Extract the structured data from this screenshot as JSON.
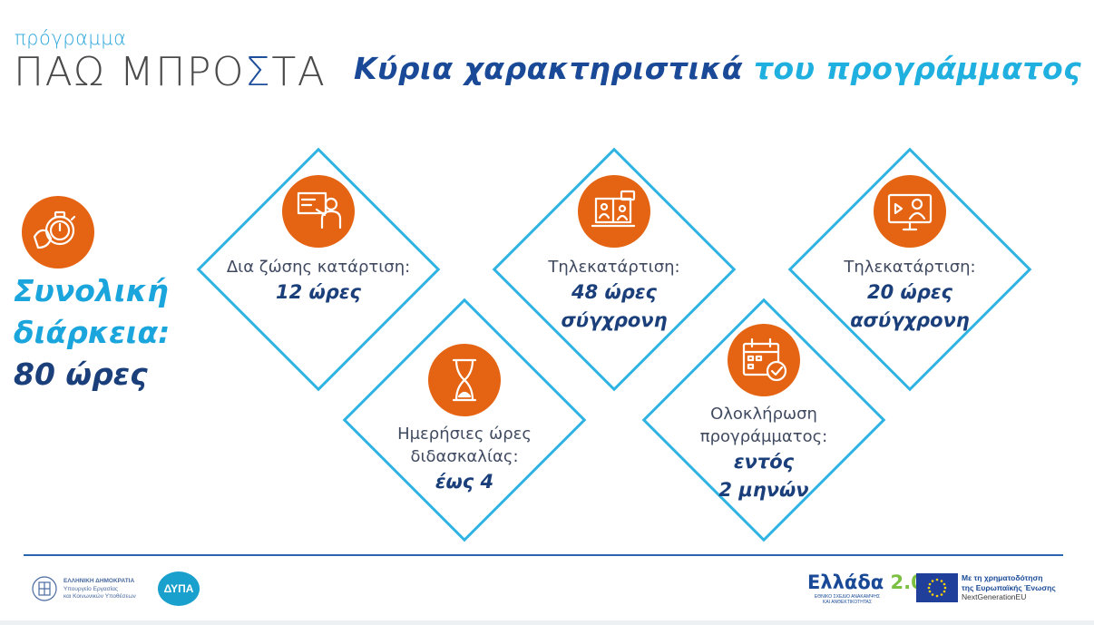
{
  "brand": {
    "small": "πρόγραμμα",
    "big_before": "ΠΑΩ ΜΠΡΟ",
    "big_sigma": "Σ",
    "big_after": "ΤΑ"
  },
  "title": {
    "main": "Κύρια χαρακτηριστικά",
    "accent": "του προγράμματος"
  },
  "total": {
    "line1": "Συνολική",
    "line2": "διάρκεια:",
    "line3": "80 ώρες",
    "icon": "stopwatch-icon"
  },
  "cards": [
    {
      "icon": "teacher-board-icon",
      "label1": "Δια ζώσης κατάρτιση:",
      "value1": "12 ώρες"
    },
    {
      "icon": "video-conference-icon",
      "label1": "Τηλεκατάρτιση:",
      "value1": "48 ώρες",
      "value2": "σύγχρονη"
    },
    {
      "icon": "monitor-video-icon",
      "label1": "Τηλεκατάρτιση:",
      "value1": "20 ώρες",
      "value2": "ασύγχρονη"
    },
    {
      "icon": "hourglass-icon",
      "label1": "Ημερήσιες ώρες",
      "label2": "διδασκαλίας:",
      "value1": "έως 4"
    },
    {
      "icon": "calendar-check-icon",
      "label1": "Ολοκλήρωση",
      "label2": "προγράμματος:",
      "value1": "εντός",
      "value2": "2 μηνών"
    }
  ],
  "footer": {
    "ministry_line1": "ΕΛΛΗΝΙΚΗ ΔΗΜΟΚΡΑΤΙΑ",
    "ministry_line2": "Υπουργείο Εργασίας",
    "ministry_line3": "και Κοινωνικών Υποθέσεων",
    "dypa": "ΔΥΠΑ",
    "ellada": "Ελλάδα",
    "ellada_version": "2.0",
    "ellada_sub1": "ΕΘΝΙΚΟ ΣΧΕΔΙΟ ΑΝΑΚΑΜΨΗΣ",
    "ellada_sub2": "ΚΑΙ ΑΝΘΕΚΤΙΚΟΤΗΤΑΣ",
    "eu_line1": "Με τη χρηματοδότηση",
    "eu_line2": "της Ευρωπαϊκής Ένωσης",
    "eu_line3": "NextGenerationEU"
  },
  "colors": {
    "orange": "#e46413",
    "navy": "#1a3f7a",
    "cyan": "#2fb3e3",
    "title_blue": "#1a4a97",
    "accent_blue": "#1fb0e0"
  }
}
